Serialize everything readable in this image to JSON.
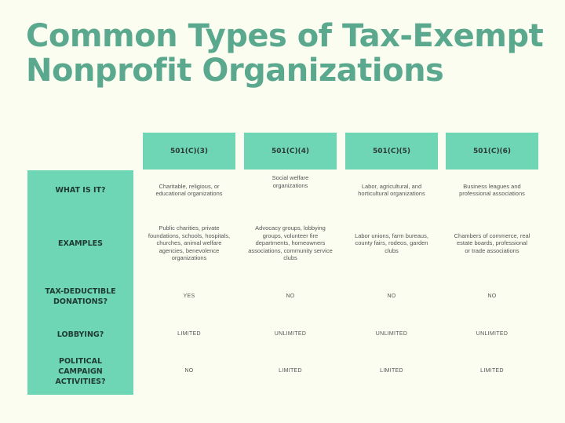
{
  "title_line1": "Common Types of Tax-Exempt",
  "title_line2": "Nonprofit Organizations",
  "columns": [
    "501(C)(3)",
    "501(C)(4)",
    "501(C)(5)",
    "501(C)(6)"
  ],
  "rows": [
    {
      "label": "WHAT IS IT?",
      "values": [
        "Charitable, religious, or educational organizations",
        "Social welfare organizations",
        "Labor, agricultural, and horticultural organizations",
        "Business leagues and professional associations"
      ]
    },
    {
      "label": "EXAMPLES",
      "values": [
        "Public charities, private foundations, schools, hospitals, churches, animal welfare agencies, benevolence organizations",
        "Advocacy groups, lobbying groups, volunteer fire departments, homeowners associations, community service clubs",
        "Labor unions, farm bureaus, county fairs, rodeos, garden clubs",
        "Chambers of commerce, real estate boards, professional or trade associations"
      ]
    },
    {
      "label": "TAX-DEDUCTIBLE DONATIONS?",
      "values": [
        "YES",
        "NO",
        "NO",
        "NO"
      ]
    },
    {
      "label": "LOBBYING?",
      "values": [
        "LIMITED",
        "UNLIMITED",
        "UNLIMITED",
        "UNLIMITED"
      ]
    },
    {
      "label": "POLITICAL CAMPAIGN ACTIVITIES?",
      "values": [
        "NO",
        "LIMITED",
        "LIMITED",
        "LIMITED"
      ]
    }
  ],
  "colors": {
    "background": "#fbfdf0",
    "title": "#5aa88e",
    "accent": "#6fd6b5"
  }
}
